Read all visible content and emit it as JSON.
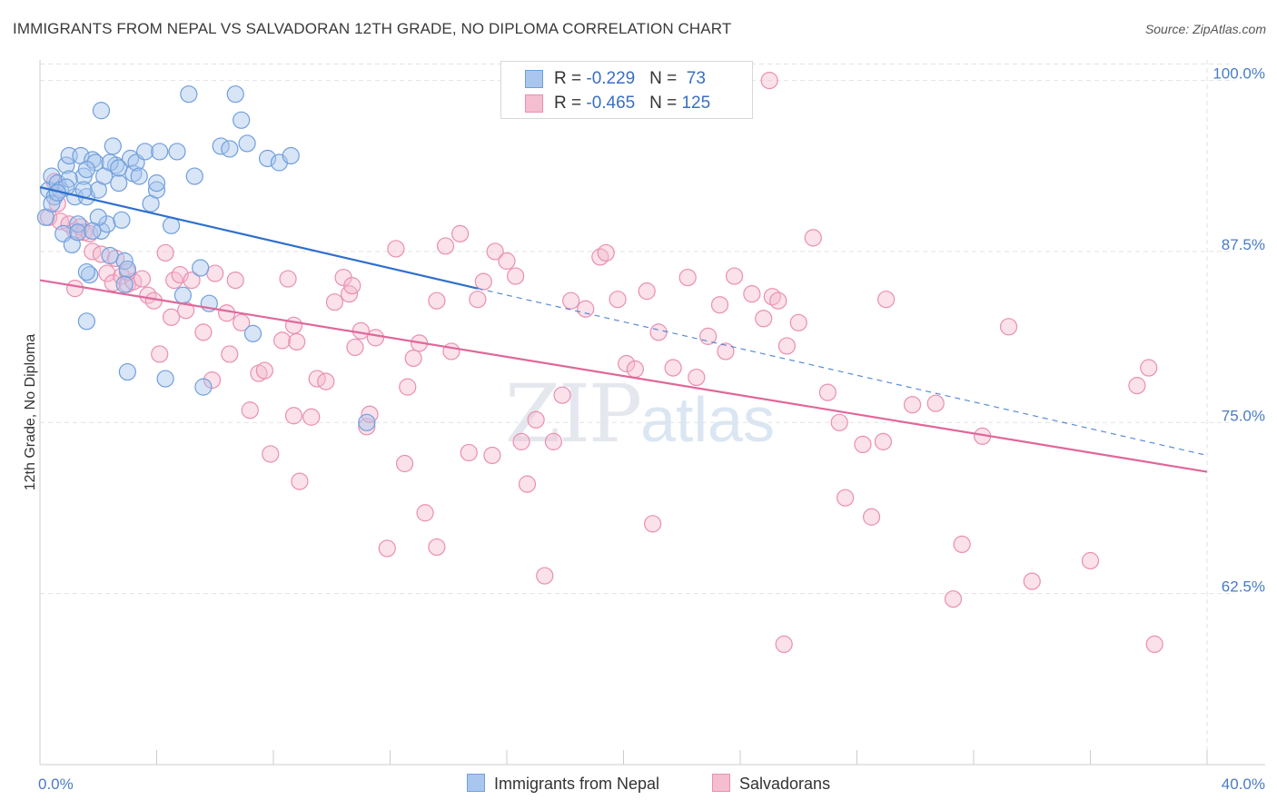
{
  "header": {
    "title": "IMMIGRANTS FROM NEPAL VS SALVADORAN 12TH GRADE, NO DIPLOMA CORRELATION CHART",
    "source": "Source: ZipAtlas.com"
  },
  "watermark": {
    "zip": "ZIP",
    "atlas": "atlas"
  },
  "legend": {
    "nepal": {
      "r_label": "R = ",
      "r_value": "-0.229",
      "n_label": "N = ",
      "n_value": "73"
    },
    "salv": {
      "r_label": "R = ",
      "r_value": "-0.465",
      "n_label": "N = ",
      "n_value": "125"
    }
  },
  "colors": {
    "nepal_fill": "#a9c6ee",
    "nepal_stroke": "#6f9fdc",
    "nepal_line": "#2f6fce",
    "salv_fill": "#f5bdd0",
    "salv_stroke": "#ea8fb0",
    "salv_line": "#e0679a",
    "grid": "#e2e2e2",
    "axis": "#cccccc",
    "tick_text": "#4a7cc4"
  },
  "chart_data": {
    "type": "scatter",
    "title": "IMMIGRANTS FROM NEPAL VS SALVADORAN 12TH GRADE, NO DIPLOMA CORRELATION CHART",
    "xlabel": "",
    "ylabel": "12th Grade, No Diploma",
    "xlim": [
      0,
      40
    ],
    "ylim": [
      50,
      101.5
    ],
    "x_tick_labels": [
      "0.0%",
      "40.0%"
    ],
    "y_ticks": [
      62.5,
      75.0,
      87.5,
      100.0
    ],
    "y_tick_labels": [
      "62.5%",
      "75.0%",
      "87.5%",
      "100.0%"
    ],
    "grid": true,
    "legend_position": "top-center",
    "series": [
      {
        "name": "Immigrants from Nepal",
        "trend": {
          "x": [
            0,
            15
          ],
          "y": [
            92.2,
            84.8
          ],
          "dashed_extension": {
            "x": [
              15,
              40
            ],
            "y": [
              84.8,
              72.6
            ]
          }
        },
        "points": [
          [
            0.2,
            90.0
          ],
          [
            0.3,
            92.0
          ],
          [
            0.4,
            93.0
          ],
          [
            0.5,
            91.5
          ],
          [
            0.6,
            92.5
          ],
          [
            0.7,
            92.0
          ],
          [
            0.8,
            88.8
          ],
          [
            0.9,
            93.8
          ],
          [
            1.0,
            94.5
          ],
          [
            1.1,
            88.0
          ],
          [
            1.2,
            91.5
          ],
          [
            1.3,
            89.5
          ],
          [
            1.4,
            94.5
          ],
          [
            1.5,
            93.0
          ],
          [
            1.6,
            91.5
          ],
          [
            1.7,
            85.8
          ],
          [
            1.8,
            94.2
          ],
          [
            1.9,
            94.0
          ],
          [
            2.0,
            92.0
          ],
          [
            2.1,
            89.0
          ],
          [
            2.2,
            93.0
          ],
          [
            2.3,
            89.5
          ],
          [
            2.1,
            97.8
          ],
          [
            2.5,
            95.2
          ],
          [
            2.6,
            93.8
          ],
          [
            2.7,
            92.5
          ],
          [
            2.8,
            89.8
          ],
          [
            2.9,
            86.8
          ],
          [
            3.0,
            86.2
          ],
          [
            3.1,
            94.3
          ],
          [
            3.2,
            93.2
          ],
          [
            3.3,
            94.0
          ],
          [
            3.6,
            94.8
          ],
          [
            3.8,
            91.0
          ],
          [
            4.0,
            92.0
          ],
          [
            4.1,
            94.8
          ],
          [
            4.5,
            89.4
          ],
          [
            4.7,
            94.8
          ],
          [
            4.9,
            84.3
          ],
          [
            5.1,
            99.0
          ],
          [
            5.3,
            93.0
          ],
          [
            5.5,
            86.3
          ],
          [
            5.8,
            83.7
          ],
          [
            6.2,
            95.2
          ],
          [
            6.5,
            95.0
          ],
          [
            6.7,
            99.0
          ],
          [
            6.9,
            97.1
          ],
          [
            7.1,
            95.4
          ],
          [
            7.3,
            81.5
          ],
          [
            7.8,
            94.3
          ],
          [
            8.2,
            94.0
          ],
          [
            8.6,
            94.5
          ],
          [
            0.4,
            91.0
          ],
          [
            1.0,
            92.8
          ],
          [
            1.6,
            93.5
          ],
          [
            2.4,
            87.2
          ],
          [
            1.6,
            86.0
          ],
          [
            2.0,
            90.0
          ],
          [
            2.4,
            94.0
          ],
          [
            2.7,
            93.6
          ],
          [
            0.9,
            92.2
          ],
          [
            1.3,
            88.9
          ],
          [
            1.5,
            92.0
          ],
          [
            2.9,
            85.1
          ],
          [
            3.0,
            78.7
          ],
          [
            4.3,
            78.2
          ],
          [
            5.6,
            77.6
          ],
          [
            11.2,
            75.0
          ],
          [
            1.6,
            82.4
          ],
          [
            3.4,
            93.0
          ],
          [
            4.0,
            92.5
          ],
          [
            0.6,
            91.8
          ],
          [
            1.8,
            89.0
          ]
        ]
      },
      {
        "name": "Salvadorans",
        "trend": {
          "x": [
            0,
            40
          ],
          "y": [
            85.4,
            71.4
          ]
        },
        "points": [
          [
            0.3,
            90.0
          ],
          [
            0.5,
            92.6
          ],
          [
            0.6,
            91.0
          ],
          [
            0.7,
            89.7
          ],
          [
            1.0,
            89.5
          ],
          [
            1.2,
            89.0
          ],
          [
            1.4,
            89.3
          ],
          [
            1.5,
            88.9
          ],
          [
            1.7,
            88.8
          ],
          [
            1.8,
            87.5
          ],
          [
            2.1,
            87.3
          ],
          [
            2.3,
            85.9
          ],
          [
            2.5,
            85.2
          ],
          [
            2.6,
            87.0
          ],
          [
            2.8,
            85.7
          ],
          [
            3.0,
            85.1
          ],
          [
            3.2,
            85.3
          ],
          [
            3.5,
            85.5
          ],
          [
            3.7,
            84.3
          ],
          [
            3.9,
            83.9
          ],
          [
            4.1,
            80.0
          ],
          [
            4.3,
            87.4
          ],
          [
            4.5,
            82.7
          ],
          [
            4.6,
            85.4
          ],
          [
            4.8,
            85.8
          ],
          [
            5.0,
            83.2
          ],
          [
            5.2,
            85.4
          ],
          [
            5.6,
            81.6
          ],
          [
            5.9,
            78.1
          ],
          [
            6.0,
            85.9
          ],
          [
            6.4,
            83.0
          ],
          [
            6.5,
            80.0
          ],
          [
            6.7,
            85.4
          ],
          [
            6.9,
            82.3
          ],
          [
            7.2,
            75.9
          ],
          [
            7.5,
            78.6
          ],
          [
            7.7,
            78.8
          ],
          [
            7.9,
            72.7
          ],
          [
            8.3,
            81.0
          ],
          [
            8.5,
            85.5
          ],
          [
            8.7,
            82.1
          ],
          [
            8.8,
            80.9
          ],
          [
            8.9,
            70.7
          ],
          [
            9.3,
            75.4
          ],
          [
            9.5,
            78.2
          ],
          [
            9.8,
            78.0
          ],
          [
            10.1,
            83.8
          ],
          [
            10.4,
            85.6
          ],
          [
            10.6,
            84.4
          ],
          [
            10.7,
            85.0
          ],
          [
            10.8,
            80.5
          ],
          [
            11.0,
            81.7
          ],
          [
            11.2,
            74.7
          ],
          [
            11.3,
            75.6
          ],
          [
            11.5,
            81.2
          ],
          [
            11.9,
            65.8
          ],
          [
            12.2,
            87.7
          ],
          [
            12.5,
            72.0
          ],
          [
            12.6,
            77.6
          ],
          [
            12.8,
            79.7
          ],
          [
            13.0,
            80.8
          ],
          [
            13.2,
            68.4
          ],
          [
            13.6,
            83.9
          ],
          [
            13.9,
            87.9
          ],
          [
            14.1,
            80.2
          ],
          [
            14.4,
            88.8
          ],
          [
            14.7,
            72.8
          ],
          [
            15.0,
            84.0
          ],
          [
            15.2,
            85.3
          ],
          [
            15.5,
            72.6
          ],
          [
            15.6,
            87.5
          ],
          [
            16.0,
            86.8
          ],
          [
            16.3,
            85.7
          ],
          [
            16.5,
            73.6
          ],
          [
            16.7,
            70.5
          ],
          [
            17.0,
            75.2
          ],
          [
            17.3,
            63.8
          ],
          [
            17.6,
            73.6
          ],
          [
            17.9,
            77.0
          ],
          [
            18.2,
            83.9
          ],
          [
            18.7,
            83.3
          ],
          [
            19.2,
            87.1
          ],
          [
            19.4,
            87.4
          ],
          [
            19.8,
            84.0
          ],
          [
            20.1,
            79.3
          ],
          [
            20.4,
            78.9
          ],
          [
            20.8,
            84.6
          ],
          [
            21.0,
            67.6
          ],
          [
            21.2,
            81.6
          ],
          [
            21.7,
            79.0
          ],
          [
            22.2,
            85.6
          ],
          [
            22.5,
            78.3
          ],
          [
            22.9,
            81.3
          ],
          [
            23.3,
            83.6
          ],
          [
            23.5,
            80.2
          ],
          [
            23.8,
            85.7
          ],
          [
            24.4,
            84.4
          ],
          [
            24.8,
            82.6
          ],
          [
            25.1,
            84.2
          ],
          [
            25.3,
            83.9
          ],
          [
            25.6,
            80.6
          ],
          [
            26.0,
            82.3
          ],
          [
            26.5,
            88.5
          ],
          [
            27.0,
            77.2
          ],
          [
            27.4,
            75.0
          ],
          [
            27.6,
            69.5
          ],
          [
            28.2,
            73.4
          ],
          [
            28.5,
            68.1
          ],
          [
            28.9,
            73.6
          ],
          [
            29.0,
            84.0
          ],
          [
            29.9,
            76.3
          ],
          [
            30.7,
            76.4
          ],
          [
            31.3,
            62.1
          ],
          [
            31.6,
            66.1
          ],
          [
            32.3,
            74.0
          ],
          [
            33.2,
            82.0
          ],
          [
            34.0,
            63.4
          ],
          [
            36.0,
            64.9
          ],
          [
            37.6,
            77.7
          ],
          [
            38.0,
            79.0
          ],
          [
            38.2,
            58.8
          ],
          [
            25.5,
            58.8
          ],
          [
            25.0,
            100.0
          ],
          [
            13.6,
            65.9
          ],
          [
            8.7,
            75.5
          ],
          [
            1.2,
            84.8
          ],
          [
            3.0,
            86.0
          ]
        ]
      }
    ]
  },
  "bottom_legend": {
    "nepal": "Immigrants from Nepal",
    "salv": "Salvadorans"
  }
}
